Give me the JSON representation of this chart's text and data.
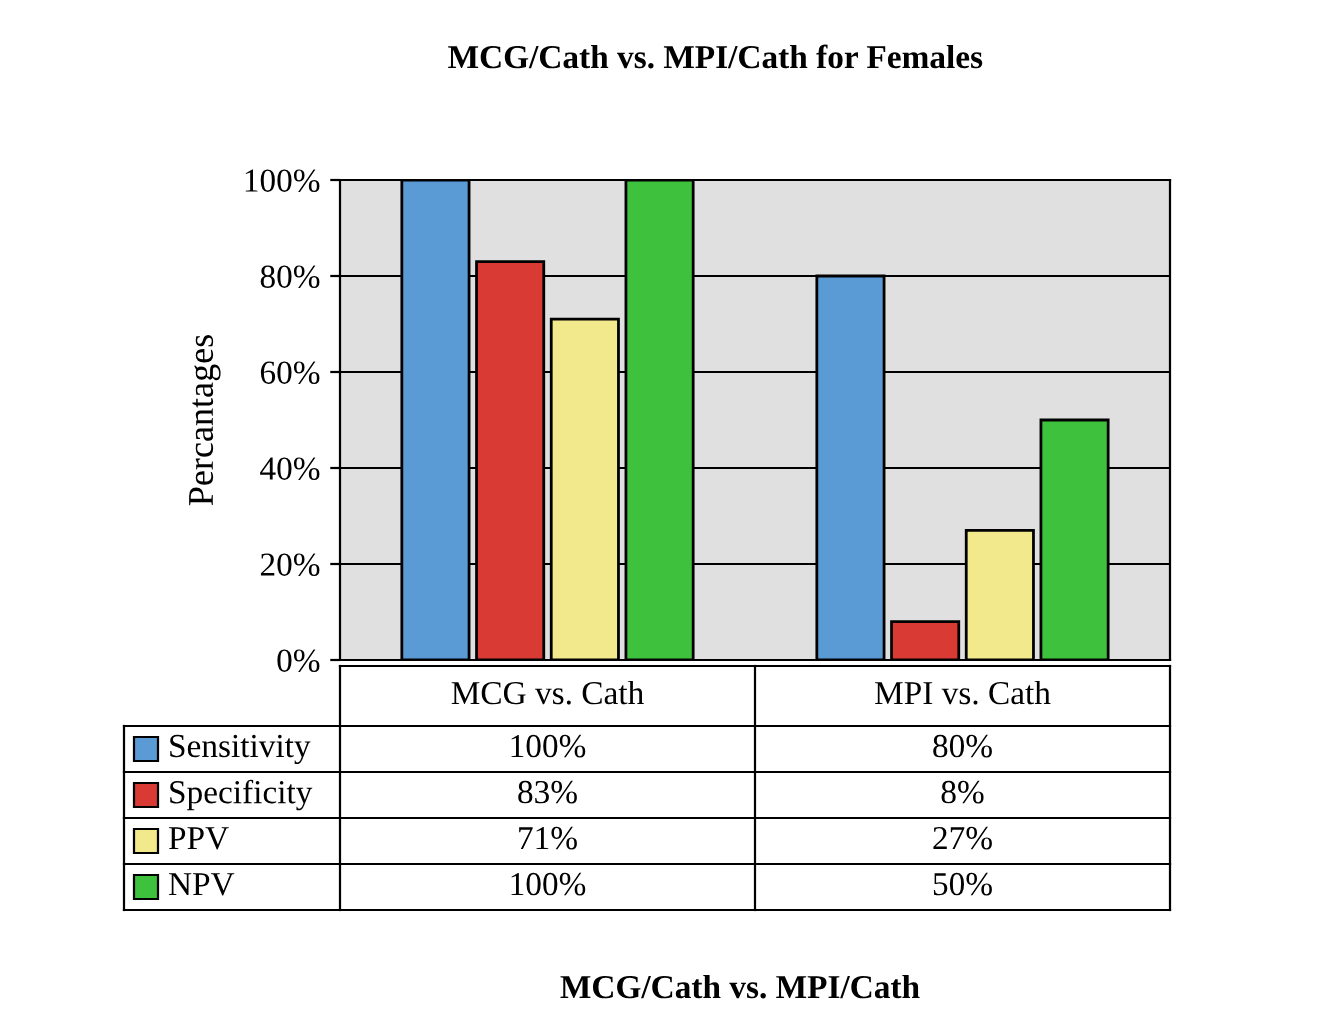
{
  "chart_data": {
    "type": "bar",
    "title": "MCG/Cath vs. MPI/Cath for Females",
    "annotations": [
      "MCG/Cath vs. MPI/Cath"
    ],
    "ylabel": "Percantages",
    "categories": [
      "MCG vs. Cath",
      "MPI vs. Cath"
    ],
    "series": [
      {
        "name": "Sensitivity",
        "color": "#5b9bd5",
        "values": [
          100,
          80
        ],
        "value_labels": [
          "100%",
          "80%"
        ]
      },
      {
        "name": "Specificity",
        "color": "#d93a34",
        "values": [
          83,
          8
        ],
        "value_labels": [
          "83%",
          "8%"
        ]
      },
      {
        "name": "PPV",
        "color": "#f2e88c",
        "values": [
          71,
          27
        ],
        "value_labels": [
          "71%",
          "27%"
        ]
      },
      {
        "name": "NPV",
        "color": "#3ec23e",
        "values": [
          100,
          50
        ],
        "value_labels": [
          "100%",
          "50%"
        ]
      }
    ],
    "ylim": [
      0,
      100
    ],
    "yticks": [
      {
        "value": 0,
        "label": "0%"
      },
      {
        "value": 20,
        "label": "20%"
      },
      {
        "value": 40,
        "label": "40%"
      },
      {
        "value": 60,
        "label": "60%"
      },
      {
        "value": 80,
        "label": "80%"
      },
      {
        "value": 100,
        "label": "100%"
      }
    ],
    "grid": "y",
    "legend": "bottom left"
  }
}
